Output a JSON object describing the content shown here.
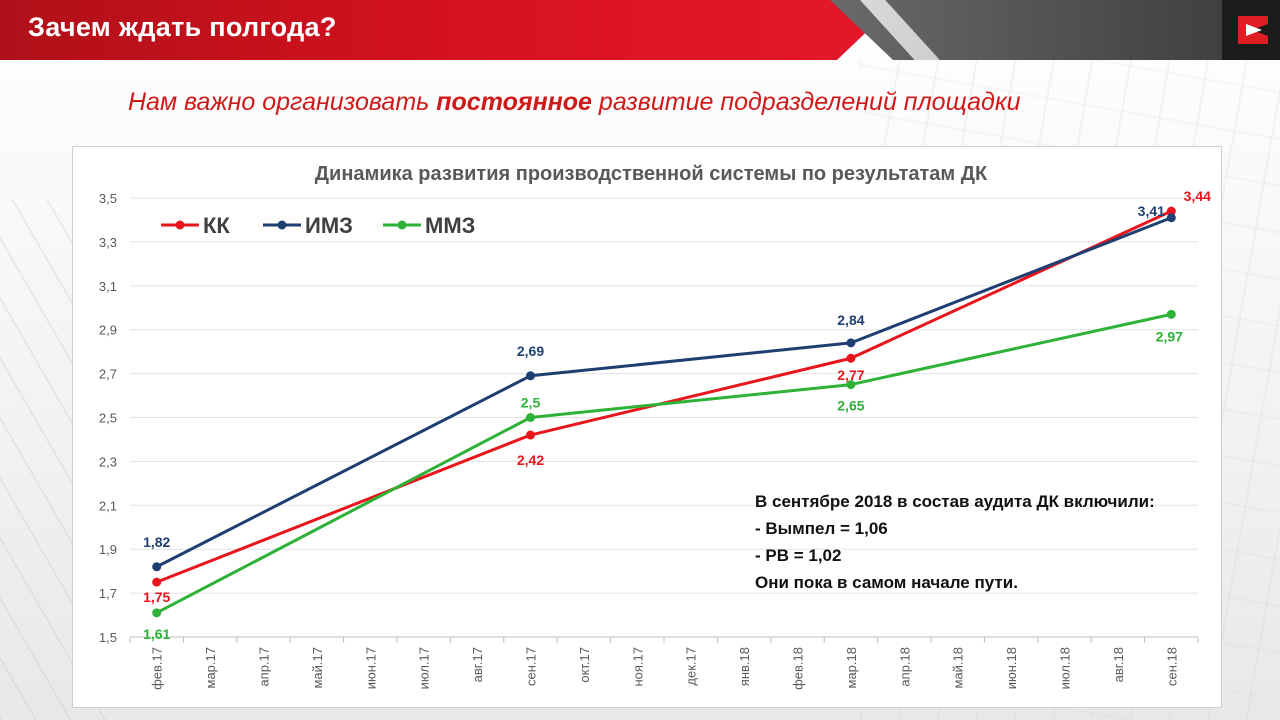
{
  "header": {
    "title": "Зачем ждать полгода?",
    "subtitle_pre": "Нам важно организовать ",
    "subtitle_bold": "постоянное",
    "subtitle_post": " развитие подразделений площадки"
  },
  "chart_data": {
    "type": "line",
    "title": "Динамика развития производственной системы по результатам ДК",
    "categories": [
      "фев.17",
      "мар.17",
      "апр.17",
      "май.17",
      "июн.17",
      "июл.17",
      "авг.17",
      "сен.17",
      "окт.17",
      "ноя.17",
      "дек.17",
      "янв.18",
      "фев.18",
      "мар.18",
      "апр.18",
      "май.18",
      "июн.18",
      "июл.18",
      "авг.18",
      "сен.18"
    ],
    "ylim": [
      1.5,
      3.5
    ],
    "yticks": [
      "1,5",
      "1,7",
      "1,9",
      "2,1",
      "2,3",
      "2,5",
      "2,7",
      "2,9",
      "3,1",
      "3,3",
      "3,5"
    ],
    "grid": true,
    "legend_position": "top-left",
    "series": [
      {
        "name": "КК",
        "color": "#e8161c",
        "points": [
          {
            "x": "фев.17",
            "y": 1.75,
            "label": "1,75"
          },
          {
            "x": "сен.17",
            "y": 2.42,
            "label": "2,42"
          },
          {
            "x": "мар.18",
            "y": 2.77,
            "label": "2,77"
          },
          {
            "x": "сен.18",
            "y": 3.44,
            "label": "3,44"
          }
        ]
      },
      {
        "name": "ИМЗ",
        "color": "#1f3f73",
        "points": [
          {
            "x": "фев.17",
            "y": 1.82,
            "label": "1,82"
          },
          {
            "x": "сен.17",
            "y": 2.69,
            "label": "2,69"
          },
          {
            "x": "мар.18",
            "y": 2.84,
            "label": "2,84"
          },
          {
            "x": "сен.18",
            "y": 3.41,
            "label": "3,41"
          }
        ]
      },
      {
        "name": "ММЗ",
        "color": "#2eb137",
        "points": [
          {
            "x": "фев.17",
            "y": 1.61,
            "label": "1,61"
          },
          {
            "x": "сен.17",
            "y": 2.5,
            "label": "2,5"
          },
          {
            "x": "мар.18",
            "y": 2.65,
            "label": "2,65"
          },
          {
            "x": "сен.18",
            "y": 2.97,
            "label": "2,97"
          }
        ]
      }
    ],
    "annotation": [
      "В сентябре 2018  в состав аудита ДК включили:",
      "- Вымпел = 1,06",
      "- РВ = 1,02",
      "Они пока в самом начале пути."
    ]
  }
}
